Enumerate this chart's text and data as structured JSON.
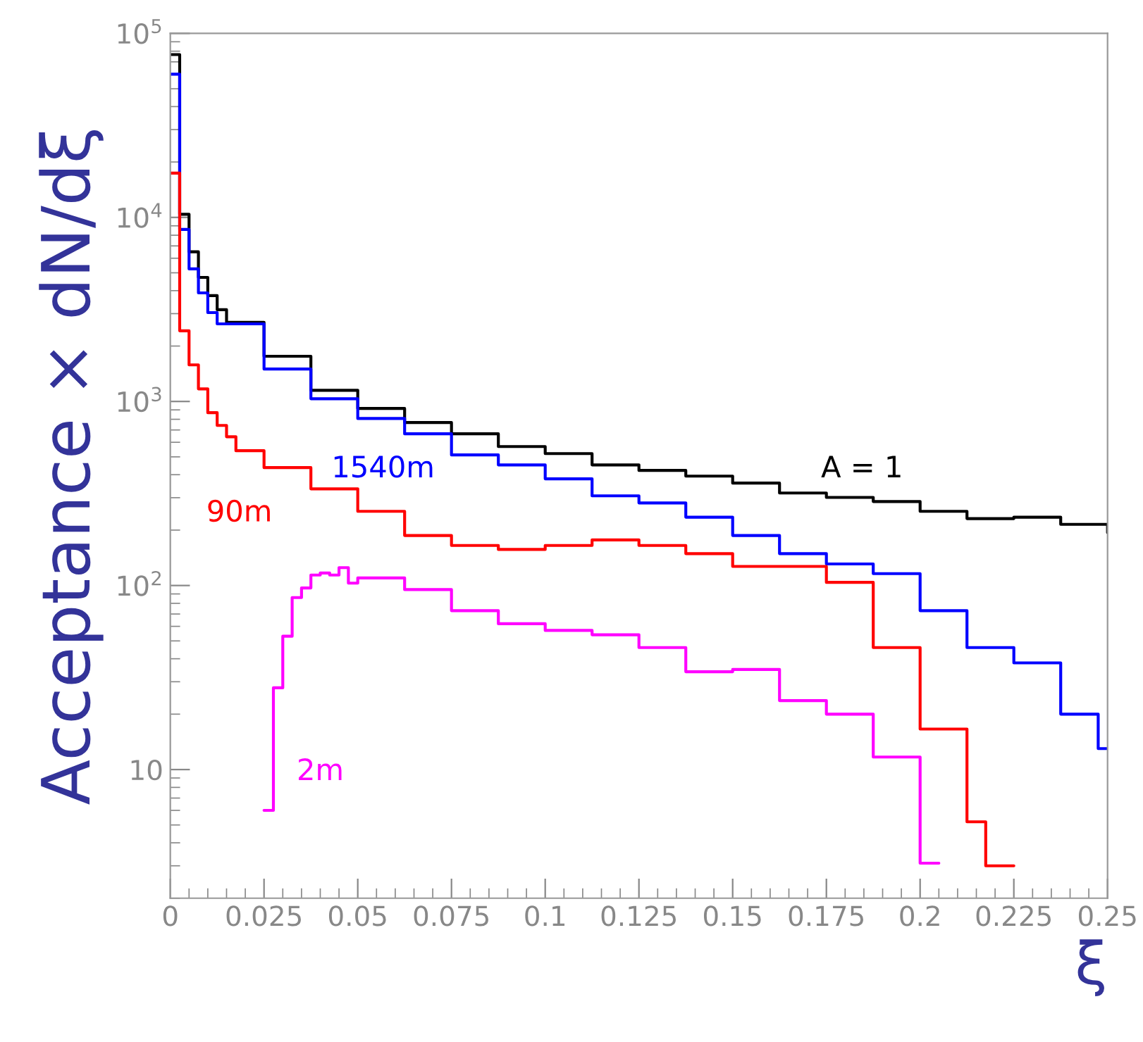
{
  "chart_data": {
    "type": "step",
    "ylabel": "Acceptance × dN/dξ",
    "xlabel": "ξ",
    "log": "y",
    "grid": false,
    "legend": false,
    "xlim": [
      0,
      0.25
    ],
    "xticks": [
      0,
      0.025,
      0.05,
      0.075,
      0.1,
      0.125,
      0.15,
      0.175,
      0.2,
      0.225,
      0.25
    ],
    "ylim": [
      2,
      100000
    ],
    "yticks": [
      10,
      {
        "value": 100,
        "label": "10$^{2}$"
      },
      {
        "value": 1000,
        "label": "10$^{3}$"
      },
      {
        "value": 10000,
        "label": "10$^{4}$"
      },
      {
        "value": 100000,
        "label": "10$^{5}$"
      }
    ],
    "series": [
      {
        "name": "A = 1",
        "color": "#000000",
        "x": [
          0,
          0.0025,
          0.005,
          0.0075,
          0.01,
          0.0125,
          0.015,
          0.025,
          0.0375,
          0.05,
          0.0625,
          0.075,
          0.0875,
          0.1,
          0.1125,
          0.125,
          0.1375,
          0.15,
          0.1625,
          0.175,
          0.1875,
          0.2,
          0.2125,
          0.225,
          0.2375,
          0.25
        ],
        "values": [
          76700,
          10400,
          6500,
          4720,
          3760,
          3150,
          2690,
          1760,
          1150,
          916,
          768,
          667,
          569,
          521,
          452,
          422,
          393,
          360,
          318,
          301,
          286,
          253,
          231,
          235,
          215,
          194
        ]
      },
      {
        "name": "1540m",
        "color": "#0000ff",
        "x": [
          0,
          0.0025,
          0.005,
          0.0075,
          0.01,
          0.0125,
          0.025,
          0.0375,
          0.05,
          0.0625,
          0.075,
          0.0875,
          0.1,
          0.1125,
          0.125,
          0.1375,
          0.15,
          0.1625,
          0.175,
          0.1875,
          0.2,
          0.2125,
          0.225,
          0.2375,
          0.2475,
          0.25
        ],
        "values": [
          60000,
          8600,
          5250,
          3890,
          3040,
          2640,
          1500,
          1035,
          808,
          667,
          512,
          452,
          380,
          307,
          281,
          235,
          187,
          149,
          131,
          116,
          73,
          46,
          38,
          20,
          13,
          13
        ]
      },
      {
        "name": "90m",
        "color": "#ff0000",
        "x": [
          0,
          0.0025,
          0.005,
          0.0075,
          0.01,
          0.0125,
          0.015,
          0.0175,
          0.025,
          0.0375,
          0.05,
          0.0625,
          0.075,
          0.0875,
          0.1,
          0.1125,
          0.125,
          0.1375,
          0.15,
          0.1625,
          0.175,
          0.1875,
          0.2,
          0.2125,
          0.2175,
          0.225
        ],
        "values": [
          17400,
          2420,
          1580,
          1170,
          869,
          741,
          643,
          540,
          437,
          335,
          253,
          187,
          165,
          157,
          165,
          177,
          165,
          149,
          127,
          127,
          104,
          46,
          16.6,
          5.2,
          3,
          3
        ]
      },
      {
        "name": "2m",
        "color": "#ff00ff",
        "x": [
          0.025,
          0.0275,
          0.03,
          0.0325,
          0.035,
          0.0375,
          0.04,
          0.0425,
          0.045,
          0.0475,
          0.05,
          0.0625,
          0.075,
          0.0875,
          0.1,
          0.1125,
          0.125,
          0.1375,
          0.15,
          0.1625,
          0.175,
          0.1875,
          0.2,
          0.205
        ],
        "values": [
          6,
          27.8,
          53,
          86,
          97,
          114,
          117,
          114,
          125,
          103,
          110,
          95,
          73,
          62,
          57,
          54,
          46,
          34,
          35,
          23.7,
          20,
          11.7,
          3.1,
          3.1
        ]
      }
    ]
  }
}
